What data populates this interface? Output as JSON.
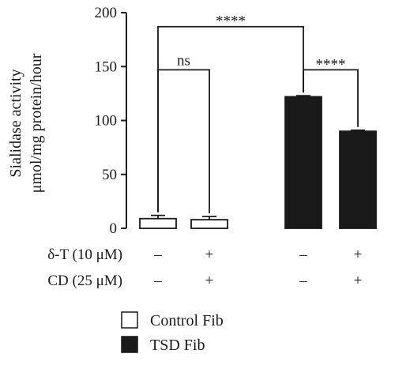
{
  "chart_data": {
    "type": "bar",
    "ylabel_lines": [
      "Sialidase activity",
      "μmol/mg protein/hour"
    ],
    "ylim": [
      0,
      200
    ],
    "yticks": [
      0,
      50,
      100,
      150,
      200
    ],
    "grid": false,
    "legend_placement": "bottom",
    "series": [
      {
        "name": "Control Fib",
        "color": "#ffffff",
        "values": [
          9,
          8
        ],
        "errors": [
          3,
          3
        ]
      },
      {
        "name": "TSD Fib",
        "color": "#1a1a1a",
        "values": [
          122,
          90
        ],
        "errors": [
          1,
          1
        ]
      }
    ],
    "conditions": [
      {
        "label": "δ-T (10 μM)",
        "values": [
          "–",
          "+",
          "–",
          "+"
        ]
      },
      {
        "label": "CD (25 μM)",
        "values": [
          "–",
          "+",
          "–",
          "+"
        ]
      }
    ],
    "significance": [
      {
        "label": "ns",
        "from_bar": 0,
        "to_bar": 1
      },
      {
        "label": "****",
        "from_bar": 0,
        "to_bar": 2
      },
      {
        "label": "****",
        "from_bar": 2,
        "to_bar": 3
      }
    ]
  }
}
